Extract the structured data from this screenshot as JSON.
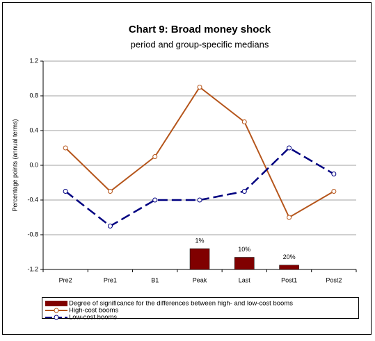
{
  "chart_data": {
    "type": "line",
    "title": "Chart 9: Broad money shock",
    "subtitle": "period and group-specific medians",
    "y_label": "Percentage points (annual terms)",
    "categories": [
      "Pre2",
      "Pre1",
      "B1",
      "Peak",
      "Last",
      "Post1",
      "Post2"
    ],
    "ylim": [
      -1.2,
      1.2
    ],
    "yticks": [
      {
        "value": -1.2,
        "label": "-1.2"
      },
      {
        "value": -0.8,
        "label": "-0.8"
      },
      {
        "value": -0.4,
        "label": "-0.4"
      },
      {
        "value": 0,
        "label": "0.0"
      },
      {
        "value": 0.4,
        "label": "0.4"
      },
      {
        "value": 0.8,
        "label": "0.8"
      },
      {
        "value": 1.2,
        "label": "1.2"
      }
    ],
    "grid": true,
    "series": [
      {
        "name": "Degree of significance for the differences between high- and low-cost booms",
        "type": "bar",
        "color": "#800000",
        "values": [
          null,
          null,
          null,
          -0.96,
          -1.06,
          -1.15,
          null
        ],
        "bar_labels": [
          null,
          null,
          null,
          "1%",
          "10%",
          "20%",
          null
        ]
      },
      {
        "name": "High-cost booms",
        "type": "line",
        "color": "#b5551b",
        "dashed": false,
        "values": [
          0.2,
          -0.3,
          0.1,
          0.9,
          0.5,
          -0.6,
          -0.3
        ]
      },
      {
        "name": "Low-cost booms",
        "type": "line",
        "color": "#000080",
        "dashed": true,
        "values": [
          -0.3,
          -0.7,
          -0.4,
          -0.4,
          -0.3,
          0.2,
          -0.1
        ]
      }
    ]
  }
}
